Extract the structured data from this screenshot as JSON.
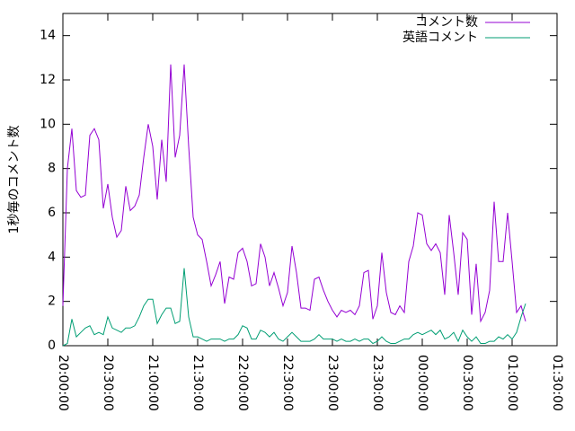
{
  "chart_data": {
    "type": "line",
    "ylabel": "1秒毎のコメント数",
    "x": [
      "20:00:00",
      "20:03:00",
      "20:06:00",
      "20:09:00",
      "20:12:00",
      "20:15:00",
      "20:18:00",
      "20:21:00",
      "20:24:00",
      "20:27:00",
      "20:30:00",
      "20:33:00",
      "20:36:00",
      "20:39:00",
      "20:42:00",
      "20:45:00",
      "20:48:00",
      "20:51:00",
      "20:54:00",
      "20:57:00",
      "21:00:00",
      "21:03:00",
      "21:06:00",
      "21:09:00",
      "21:12:00",
      "21:15:00",
      "21:18:00",
      "21:21:00",
      "21:24:00",
      "21:27:00",
      "21:30:00",
      "21:33:00",
      "21:36:00",
      "21:39:00",
      "21:42:00",
      "21:45:00",
      "21:48:00",
      "21:51:00",
      "21:54:00",
      "21:57:00",
      "22:00:00",
      "22:03:00",
      "22:06:00",
      "22:09:00",
      "22:12:00",
      "22:15:00",
      "22:18:00",
      "22:21:00",
      "22:24:00",
      "22:27:00",
      "22:30:00",
      "22:33:00",
      "22:36:00",
      "22:39:00",
      "22:42:00",
      "22:45:00",
      "22:48:00",
      "22:51:00",
      "22:54:00",
      "22:57:00",
      "23:00:00",
      "23:03:00",
      "23:06:00",
      "23:09:00",
      "23:12:00",
      "23:15:00",
      "23:18:00",
      "23:21:00",
      "23:24:00",
      "23:27:00",
      "23:30:00",
      "23:33:00",
      "23:36:00",
      "23:39:00",
      "23:42:00",
      "23:45:00",
      "23:48:00",
      "23:51:00",
      "23:54:00",
      "23:57:00",
      "00:00:00",
      "00:03:00",
      "00:06:00",
      "00:09:00",
      "00:12:00",
      "00:15:00",
      "00:18:00",
      "00:21:00",
      "00:24:00",
      "00:27:00",
      "00:30:00",
      "00:33:00",
      "00:36:00",
      "00:39:00",
      "00:42:00",
      "00:45:00",
      "00:48:00",
      "00:51:00",
      "00:54:00",
      "00:57:00",
      "01:00:00",
      "01:03:00",
      "01:06:00",
      "01:09:00"
    ],
    "series": [
      {
        "name": "コメント数",
        "color": "#9400d3",
        "values": [
          1.8,
          8,
          9.8,
          7,
          6.7,
          6.8,
          9.5,
          9.8,
          9.3,
          6.2,
          7.3,
          5.8,
          4.9,
          5.2,
          7.2,
          6.1,
          6.3,
          6.8,
          8.5,
          10,
          9,
          6.6,
          9.3,
          7.4,
          12.7,
          8.5,
          9.5,
          12.7,
          9,
          5.8,
          5,
          4.8,
          3.8,
          2.7,
          3.2,
          3.8,
          1.9,
          3.1,
          3,
          4.2,
          4.4,
          3.8,
          2.7,
          2.8,
          4.6,
          4,
          2.7,
          3.3,
          2.6,
          1.8,
          2.4,
          4.5,
          3.3,
          1.7,
          1.7,
          1.6,
          3,
          3.1,
          2.5,
          2,
          1.6,
          1.3,
          1.6,
          1.5,
          1.6,
          1.4,
          1.8,
          3.3,
          3.4,
          1.2,
          1.8,
          4.2,
          2.4,
          1.5,
          1.4,
          1.8,
          1.5,
          3.8,
          4.5,
          6,
          5.9,
          4.6,
          4.3,
          4.6,
          4.2,
          2.3,
          5.9,
          4.2,
          2.3,
          5.1,
          4.8,
          1.4,
          3.7,
          1.1,
          1.5,
          2.5,
          6.5,
          3.8,
          3.8,
          6,
          3.8,
          1.5,
          1.8,
          1.1
        ]
      },
      {
        "name": "英語コメント",
        "color": "#009e73",
        "values": [
          0,
          0.1,
          1.2,
          0.4,
          0.6,
          0.8,
          0.9,
          0.5,
          0.6,
          0.5,
          1.3,
          0.8,
          0.7,
          0.6,
          0.8,
          0.8,
          0.9,
          1.3,
          1.8,
          2.1,
          2.1,
          1,
          1.4,
          1.7,
          1.7,
          1,
          1.1,
          3.5,
          1.3,
          0.4,
          0.4,
          0.3,
          0.2,
          0.3,
          0.3,
          0.3,
          0.2,
          0.3,
          0.3,
          0.5,
          0.9,
          0.8,
          0.3,
          0.3,
          0.7,
          0.6,
          0.4,
          0.6,
          0.3,
          0.2,
          0.4,
          0.6,
          0.4,
          0.2,
          0.2,
          0.2,
          0.3,
          0.5,
          0.3,
          0.3,
          0.3,
          0.2,
          0.3,
          0.2,
          0.2,
          0.3,
          0.2,
          0.3,
          0.3,
          0.1,
          0.2,
          0.4,
          0.2,
          0.1,
          0.1,
          0.2,
          0.3,
          0.3,
          0.5,
          0.6,
          0.5,
          0.6,
          0.7,
          0.5,
          0.7,
          0.3,
          0.4,
          0.6,
          0.2,
          0.7,
          0.4,
          0.2,
          0.4,
          0.1,
          0.1,
          0.2,
          0.2,
          0.4,
          0.3,
          0.5,
          0.3,
          0.6,
          1.3,
          1.9
        ]
      }
    ],
    "xlim": [
      "20:00:00",
      "01:30:00"
    ],
    "xticks": [
      "20:00:00",
      "20:30:00",
      "21:00:00",
      "21:30:00",
      "22:00:00",
      "22:30:00",
      "23:00:00",
      "23:30:00",
      "00:00:00",
      "00:30:00",
      "01:00:00",
      "01:30:00"
    ],
    "ylim": [
      0,
      15
    ],
    "yticks": [
      0,
      2,
      4,
      6,
      8,
      10,
      12,
      14
    ],
    "legend": "top-right"
  }
}
